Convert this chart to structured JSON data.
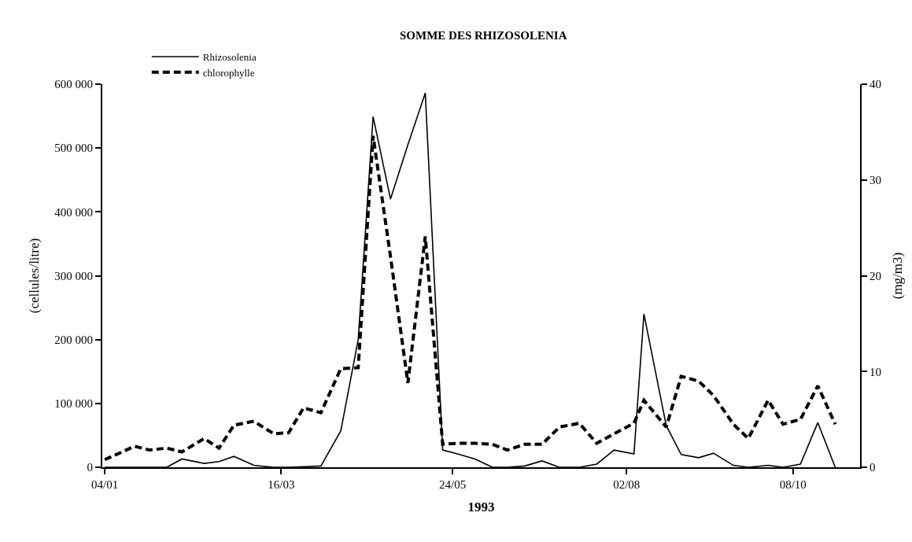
{
  "chart_data": {
    "type": "line",
    "title": "SOMME DES RHIZOSOLENIA",
    "xlabel": "1993",
    "ylabel": "(cellules/litre)",
    "y2label": "(mg/m3)",
    "x": [
      "1993-01-04",
      "1993-01-11",
      "1993-01-16",
      "1993-01-22",
      "1993-01-29",
      "1993-02-04",
      "1993-02-13",
      "1993-02-19",
      "1993-02-25",
      "1993-03-05",
      "1993-03-13",
      "1993-03-19",
      "1993-03-25",
      "1993-04-01",
      "1993-04-09",
      "1993-04-16",
      "1993-04-22",
      "1993-04-29",
      "1993-05-06",
      "1993-05-13",
      "1993-05-20",
      "1993-05-26",
      "1993-06-02",
      "1993-06-09",
      "1993-06-15",
      "1993-06-22",
      "1993-06-29",
      "1993-07-06",
      "1993-07-14",
      "1993-07-21",
      "1993-07-28",
      "1993-08-05",
      "1993-08-09",
      "1993-08-18",
      "1993-08-24",
      "1993-08-31",
      "1993-09-06",
      "1993-09-14",
      "1993-09-20",
      "1993-09-28",
      "1993-10-04",
      "1993-10-11",
      "1993-10-18",
      "1993-10-25"
    ],
    "series": [
      {
        "name": "Rhizosolenia",
        "color": "#000000",
        "line_style": "solid",
        "values": [
          0,
          0,
          0,
          0,
          0,
          13000,
          6000,
          9000,
          17000,
          3000,
          0,
          0,
          1000,
          2000,
          57000,
          200000,
          549000,
          420000,
          505000,
          586000,
          27000,
          21000,
          13000,
          0,
          0,
          2000,
          10000,
          0,
          0,
          5000,
          27000,
          21000,
          240000,
          65000,
          20000,
          15000,
          22000,
          3000,
          0,
          3000,
          0,
          5000,
          70000,
          0
        ]
      },
      {
        "name": "chlorophylle",
        "color": "#000000",
        "line_style": "dashed",
        "axis": "y2",
        "values": [
          0.8,
          1.6,
          2.2,
          1.8,
          2.0,
          1.6,
          3.0,
          2.0,
          4.4,
          4.8,
          3.5,
          3.6,
          6.2,
          5.7,
          10.3,
          10.4,
          34.6,
          22,
          8.8,
          24.1,
          2.4,
          2.5,
          2.5,
          2.4,
          1.8,
          2.4,
          2.4,
          4.2,
          4.6,
          2.5,
          3.5,
          4.6,
          7.0,
          4.2,
          9.5,
          9.0,
          7.5,
          4.5,
          3.0,
          7.0,
          4.5,
          5.0,
          8.5,
          4.5
        ]
      }
    ],
    "xlim": [
      "1993-01-03",
      "1993-11-04"
    ],
    "xticks": [
      {
        "value": "1993-01-04",
        "label": "04/01"
      },
      {
        "value": "1993-03-16",
        "label": "16/03"
      },
      {
        "value": "1993-05-24",
        "label": "24/05"
      },
      {
        "value": "1993-08-02",
        "label": "02/08"
      },
      {
        "value": "1993-10-08",
        "label": "08/10"
      }
    ],
    "ylim": [
      0,
      600000
    ],
    "yticks": [
      0,
      {
        "value": 100000,
        "label": "100 000"
      },
      {
        "value": 200000,
        "label": "200 000"
      },
      {
        "value": 300000,
        "label": "300 000"
      },
      {
        "value": 400000,
        "label": "400 000"
      },
      {
        "value": 500000,
        "label": "500 000"
      },
      {
        "value": 600000,
        "label": "600 000"
      }
    ],
    "y2lim": [
      0,
      40
    ],
    "y2ticks": [
      0,
      10,
      20,
      30,
      40
    ],
    "legend": "top left",
    "marker": "none"
  }
}
